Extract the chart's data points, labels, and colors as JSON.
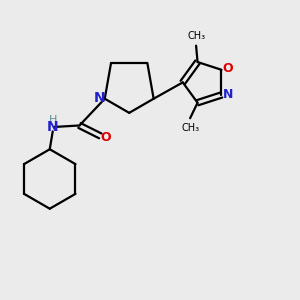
{
  "background_color": "#ebebeb",
  "bond_color": "#000000",
  "N_color": "#2222cc",
  "O_color": "#dd0000",
  "H_color": "#5a9090",
  "figsize": [
    3.0,
    3.0
  ],
  "dpi": 100,
  "xlim": [
    0,
    10
  ],
  "ylim": [
    0,
    10
  ]
}
